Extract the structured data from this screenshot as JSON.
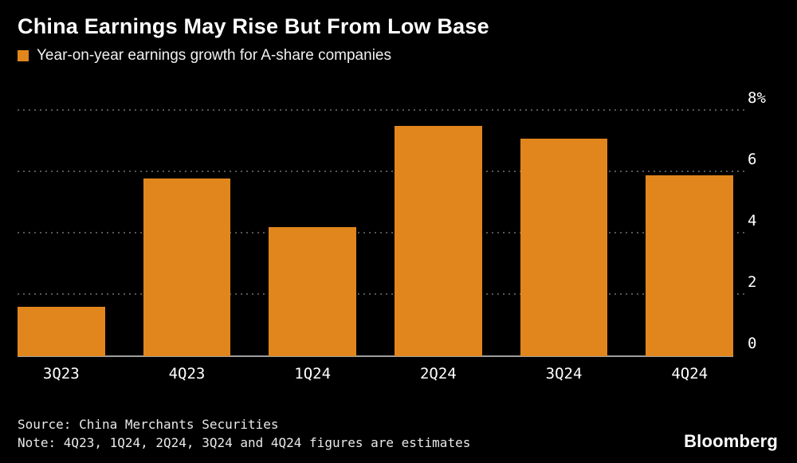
{
  "title": "China Earnings May Rise But From Low Base",
  "legend": {
    "label": "Year-on-year earnings growth for A-share companies",
    "swatch_color": "#E1861C"
  },
  "chart_data": {
    "type": "bar",
    "categories": [
      "3Q23",
      "4Q23",
      "1Q24",
      "2Q24",
      "3Q24",
      "4Q24"
    ],
    "values": [
      1.6,
      5.8,
      4.2,
      7.5,
      7.1,
      5.9
    ],
    "unit": "%",
    "title": "China Earnings May Rise But From Low Base",
    "xlabel": "",
    "ylabel": "",
    "ylim": [
      0,
      8
    ],
    "yticks": [
      0,
      2,
      4,
      6,
      8
    ],
    "ytick_labels": [
      "0",
      "2",
      "4",
      "6",
      "8%"
    ],
    "bar_color": "#E1861C",
    "grid": "dotted-horizontal",
    "tick_label_side": "right",
    "legend_position": "top-left"
  },
  "footer": {
    "source": "Source: China Merchants Securities",
    "note": "Note: 4Q23, 1Q24, 2Q24, 3Q24 and 4Q24 figures are estimates",
    "brand": "Bloomberg"
  }
}
